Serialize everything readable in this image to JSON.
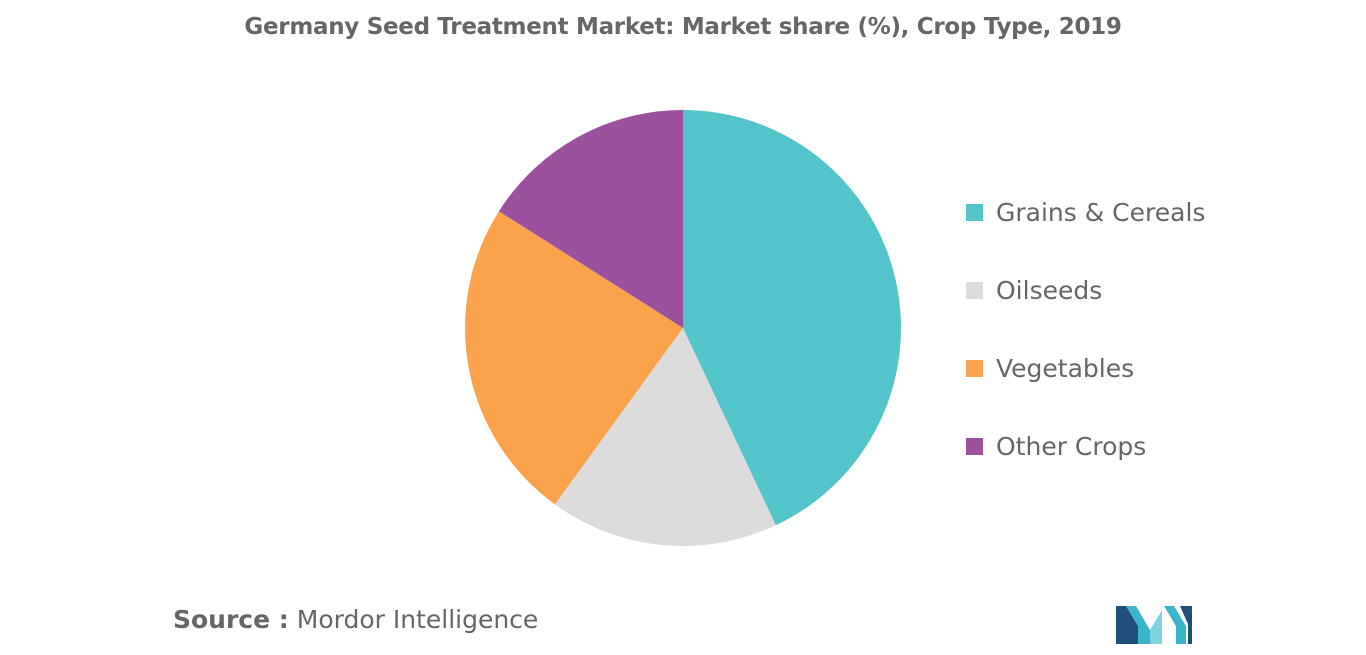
{
  "chart_data": {
    "type": "pie",
    "title": "Germany Seed Treatment Market: Market share (%), Crop Type, 2019",
    "categories": [
      "Grains & Cereals",
      "Oilseeds",
      "Vegetables",
      "Other Crops"
    ],
    "values": [
      43,
      17,
      24,
      16
    ],
    "colors": [
      "#52C4CA",
      "#DCDCDC",
      "#FBA24C",
      "#9C519E"
    ],
    "start_angle": "12 o'clock",
    "direction": "clockwise",
    "legend_position": "right"
  },
  "source": {
    "prefix": "Source :",
    "text": "Mordor Intelligence"
  },
  "logo": {
    "name": "mordor-intelligence-logo",
    "colors": [
      "#1F4E79",
      "#39B6C9",
      "#7FD3DF"
    ]
  }
}
